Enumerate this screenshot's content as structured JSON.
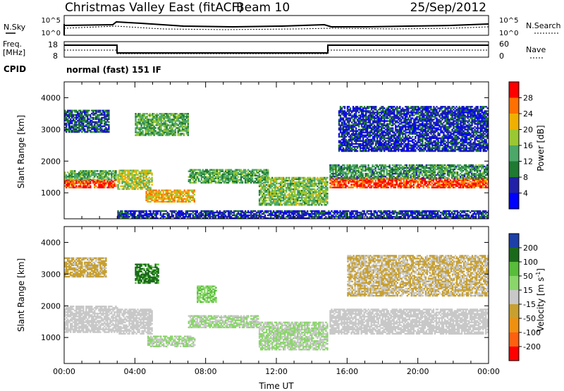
{
  "header": {
    "radar": "Christmas Valley East (fitACF)",
    "beam": "Beam 10",
    "date": "25/Sep/2012"
  },
  "noise_panel": {
    "left_label": "N.Sky",
    "left_ticks": [
      "10^5",
      "10^0"
    ],
    "right_ticks": [
      "10^5",
      "10^0"
    ],
    "right_label": "N.Search"
  },
  "freq_panel": {
    "left_label_1": "Freq.",
    "left_label_2": "[MHz]",
    "left_ticks": [
      "18",
      "8"
    ],
    "right_ticks": [
      "60",
      "0"
    ],
    "right_label": "Nave"
  },
  "cpid": {
    "label": "CPID",
    "value": "normal (fast) 151 IF"
  },
  "colors": {
    "power": [
      "#0000ff",
      "#2020a8",
      "#1f7a32",
      "#4ba868",
      "#9ac832",
      "#f0b000",
      "#ff7000",
      "#ff0000"
    ],
    "velocity": [
      "#1c3fa8",
      "#1b6a1b",
      "#58bd3a",
      "#8ad66a",
      "#c8c8c8",
      "#c8a030",
      "#f09010",
      "#ff6010",
      "#ff0000"
    ]
  },
  "chart_data": [
    {
      "type": "heatmap",
      "name": "power",
      "xlabel": "Time UT",
      "ylabel": "Slant Range [km]",
      "xlim": [
        0,
        24
      ],
      "ylim": [
        180,
        4500
      ],
      "y_ticks": [
        "1000",
        "2000",
        "3000",
        "4000"
      ],
      "colorbar": {
        "label": "Power [dB]",
        "ticks": [
          "4",
          "8",
          "12",
          "16",
          "20",
          "24",
          "28"
        ],
        "range": [
          0,
          32
        ]
      },
      "features": [
        {
          "t0": 0.0,
          "t1": 2.9,
          "r0": 1150,
          "r1": 1400,
          "level": 28
        },
        {
          "t0": 0.0,
          "t1": 2.9,
          "r0": 1400,
          "r1": 1700,
          "level": 14
        },
        {
          "t0": 3.0,
          "t1": 5.0,
          "r0": 1100,
          "r1": 1700,
          "level": 18
        },
        {
          "t0": 4.6,
          "t1": 7.4,
          "r0": 700,
          "r1": 1100,
          "level": 22
        },
        {
          "t0": 7.0,
          "t1": 11.5,
          "r0": 1300,
          "r1": 1750,
          "level": 14
        },
        {
          "t0": 11.0,
          "t1": 14.9,
          "r0": 600,
          "r1": 1500,
          "level": 16
        },
        {
          "t0": 15.0,
          "t1": 24.0,
          "r0": 1150,
          "r1": 1450,
          "level": 28
        },
        {
          "t0": 15.0,
          "t1": 24.0,
          "r0": 1450,
          "r1": 1900,
          "level": 12
        },
        {
          "t0": 15.5,
          "t1": 24.0,
          "r0": 2300,
          "r1": 3700,
          "level": 6
        },
        {
          "t0": 0.0,
          "t1": 2.5,
          "r0": 2900,
          "r1": 3600,
          "level": 8
        },
        {
          "t0": 4.0,
          "t1": 7.0,
          "r0": 2800,
          "r1": 3500,
          "level": 14
        },
        {
          "t0": 3.0,
          "t1": 24.0,
          "r0": 180,
          "r1": 450,
          "level": 6
        }
      ]
    },
    {
      "type": "heatmap",
      "name": "velocity",
      "xlabel": "Time UT",
      "ylabel": "Slant Range [km]",
      "xlim": [
        0,
        24
      ],
      "ylim": [
        180,
        4500
      ],
      "x_ticks": [
        "00:00",
        "04:00",
        "08:00",
        "12:00",
        "16:00",
        "20:00",
        "00:00"
      ],
      "y_ticks": [
        "1000",
        "2000",
        "3000",
        "4000"
      ],
      "colorbar": {
        "label": "Velocity [m s",
        "label_sup": "-1",
        "label_end": "]",
        "ticks": [
          "200",
          "100",
          "50",
          "15",
          "-15",
          "-50",
          "-100",
          "-200"
        ],
        "range": [
          -250,
          250
        ]
      },
      "features": [
        {
          "t0": 0.0,
          "t1": 3.0,
          "r0": 1150,
          "r1": 2000,
          "level": 0
        },
        {
          "t0": 3.0,
          "t1": 5.0,
          "r0": 1100,
          "r1": 1900,
          "level": 0
        },
        {
          "t0": 4.7,
          "t1": 7.4,
          "r0": 700,
          "r1": 1050,
          "level": 30
        },
        {
          "t0": 7.0,
          "t1": 11.0,
          "r0": 1300,
          "r1": 1700,
          "level": 30
        },
        {
          "t0": 11.0,
          "t1": 14.9,
          "r0": 600,
          "r1": 1500,
          "level": 30
        },
        {
          "t0": 15.0,
          "t1": 24.0,
          "r0": 1100,
          "r1": 1900,
          "level": 0
        },
        {
          "t0": 4.0,
          "t1": 5.3,
          "r0": 2700,
          "r1": 3300,
          "level": 150
        },
        {
          "t0": 0.0,
          "t1": 2.4,
          "r0": 2900,
          "r1": 3500,
          "level": -40
        },
        {
          "t0": 16.0,
          "t1": 24.0,
          "r0": 2300,
          "r1": 3600,
          "level": -30
        },
        {
          "t0": 7.5,
          "t1": 8.6,
          "r0": 2100,
          "r1": 2600,
          "level": 80
        }
      ]
    }
  ],
  "time_axis": {
    "label": "Time UT"
  }
}
